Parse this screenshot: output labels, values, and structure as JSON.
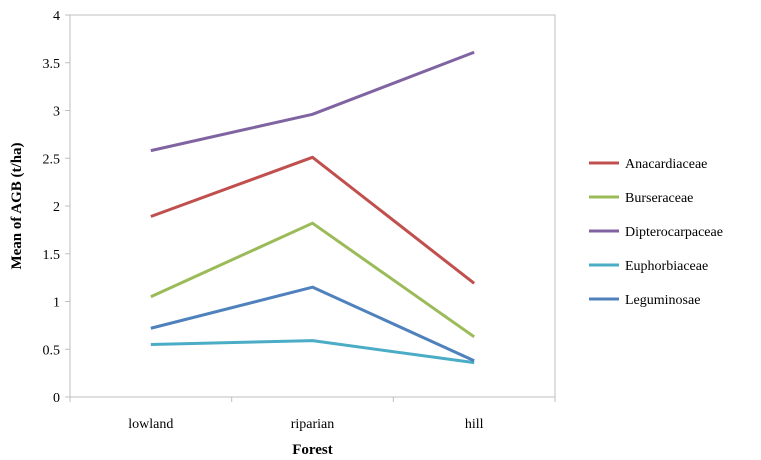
{
  "chart_data": {
    "type": "line",
    "title": "",
    "xlabel": "Forest",
    "ylabel": "Mean of AGB (t/ha)",
    "categories": [
      "lowland",
      "riparian",
      "hill"
    ],
    "ylim": [
      0,
      4
    ],
    "yticks": [
      "0",
      "0.5",
      "1",
      "1.5",
      "2",
      "2.5",
      "3",
      "3.5",
      "4"
    ],
    "grid": false,
    "legend_position": "right",
    "series": [
      {
        "name": "Anacardiaceae",
        "color": "#c0504d",
        "values": [
          1.89,
          2.51,
          1.19
        ]
      },
      {
        "name": "Burseraceae",
        "color": "#9bbb59",
        "values": [
          1.05,
          1.82,
          0.63
        ]
      },
      {
        "name": "Dipterocarpaceae",
        "color": "#8064a2",
        "values": [
          2.58,
          2.96,
          3.61
        ]
      },
      {
        "name": "Euphorbiaceae",
        "color": "#4bacc6",
        "values": [
          0.55,
          0.59,
          0.36
        ]
      },
      {
        "name": "Leguminosae",
        "color": "#4f81bd",
        "values": [
          0.72,
          1.15,
          0.38
        ]
      }
    ]
  }
}
